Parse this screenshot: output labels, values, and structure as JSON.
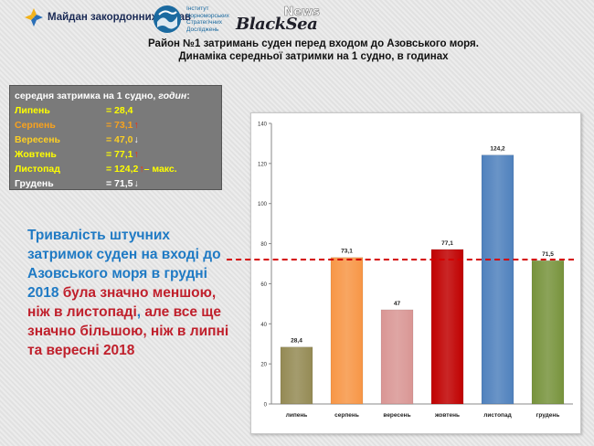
{
  "header": {
    "maidan_text": "Майдан закордонних справ",
    "isd_text": "Інститут Чорноморських Стратегічних Досліджень",
    "bs_news": "News",
    "bs_main": "BlackSea"
  },
  "title": {
    "line1": "Район №1 затримань суден перед входом до Азовського моря.",
    "line2": "Динаміка середньої затримки на 1 судно, в годинах"
  },
  "infobox": {
    "head_main": "середня затримка на 1 судно,",
    "head_unit": "годин",
    "head_colon": ":",
    "rows": [
      {
        "month": "Липень",
        "value": "= 28,4",
        "arrow": "",
        "suffix": "",
        "color": "#ffff00",
        "arrow_color": ""
      },
      {
        "month": "Серпень",
        "value": "= 73,1",
        "arrow": "↑",
        "suffix": "",
        "color": "#f8a21e",
        "arrow_color": "#ff2a00"
      },
      {
        "month": "Вересень",
        "value": "= 47,0",
        "arrow": "↓",
        "suffix": "",
        "color": "#fdcf24",
        "arrow_color": "#ffffff"
      },
      {
        "month": "Жовтень",
        "value": "= 77,1",
        "arrow": "↑",
        "suffix": "",
        "color": "#ffff00",
        "arrow_color": "#ff2a00"
      },
      {
        "month": "Листопад",
        "value": "= 124,2",
        "arrow": "↑",
        "suffix": " – макс.",
        "color": "#ffff00",
        "arrow_color": "#ff2a00"
      },
      {
        "month": "Грудень",
        "value": "= 71,5",
        "arrow": "↓",
        "suffix": "",
        "color": "#ffffff",
        "arrow_color": "#ffffff"
      }
    ]
  },
  "narrative": {
    "part1": "Тривалість штучних затримок суден на вході до Азовського моря в грудні 2018 ",
    "part2": "була значно меншою, ніж в листопаді",
    "part3": ", ",
    "part4": "але все ще значно більшою, ніж в липні та вересні 2018"
  },
  "chart_data": {
    "type": "bar",
    "categories": [
      "липень",
      "серпень",
      "вересень",
      "жовтень",
      "листопад",
      "грудень"
    ],
    "values": [
      28.4,
      73.1,
      47,
      77.1,
      124.2,
      71.5
    ],
    "value_labels": [
      "28,4",
      "73,1",
      "47",
      "77,1",
      "124,2",
      "71,5"
    ],
    "colors": [
      "#948a54",
      "#f79646",
      "#d99694",
      "#c00000",
      "#4f81bd",
      "#77933c"
    ],
    "ylim": [
      0,
      140
    ],
    "yticks": [
      0,
      20,
      40,
      60,
      80,
      100,
      120,
      140
    ],
    "grid": false,
    "reference_line": 71.5,
    "reference_line_color": "#d40000"
  }
}
